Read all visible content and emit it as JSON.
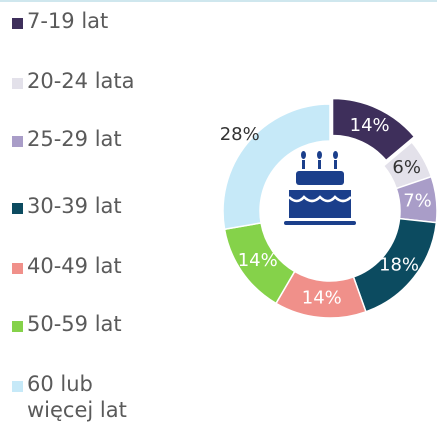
{
  "chart_data": {
    "type": "pie",
    "donut": true,
    "categories": [
      "7-19 lat",
      "20-24 lata",
      "25-29 lat",
      "30-39 lat",
      "40-49 lat",
      "50-59 lat",
      "60 lub więcej lat"
    ],
    "values": [
      14,
      6,
      7,
      18,
      14,
      14,
      28
    ],
    "value_labels": [
      "14%",
      "6%",
      "7%",
      "18%",
      "14%",
      "14%",
      "28%"
    ],
    "colors": [
      "#3e2f5b",
      "#e3e1ea",
      "#a99dc8",
      "#0c4b60",
      "#f0908a",
      "#85d24a",
      "#c6e9f8"
    ]
  }
}
